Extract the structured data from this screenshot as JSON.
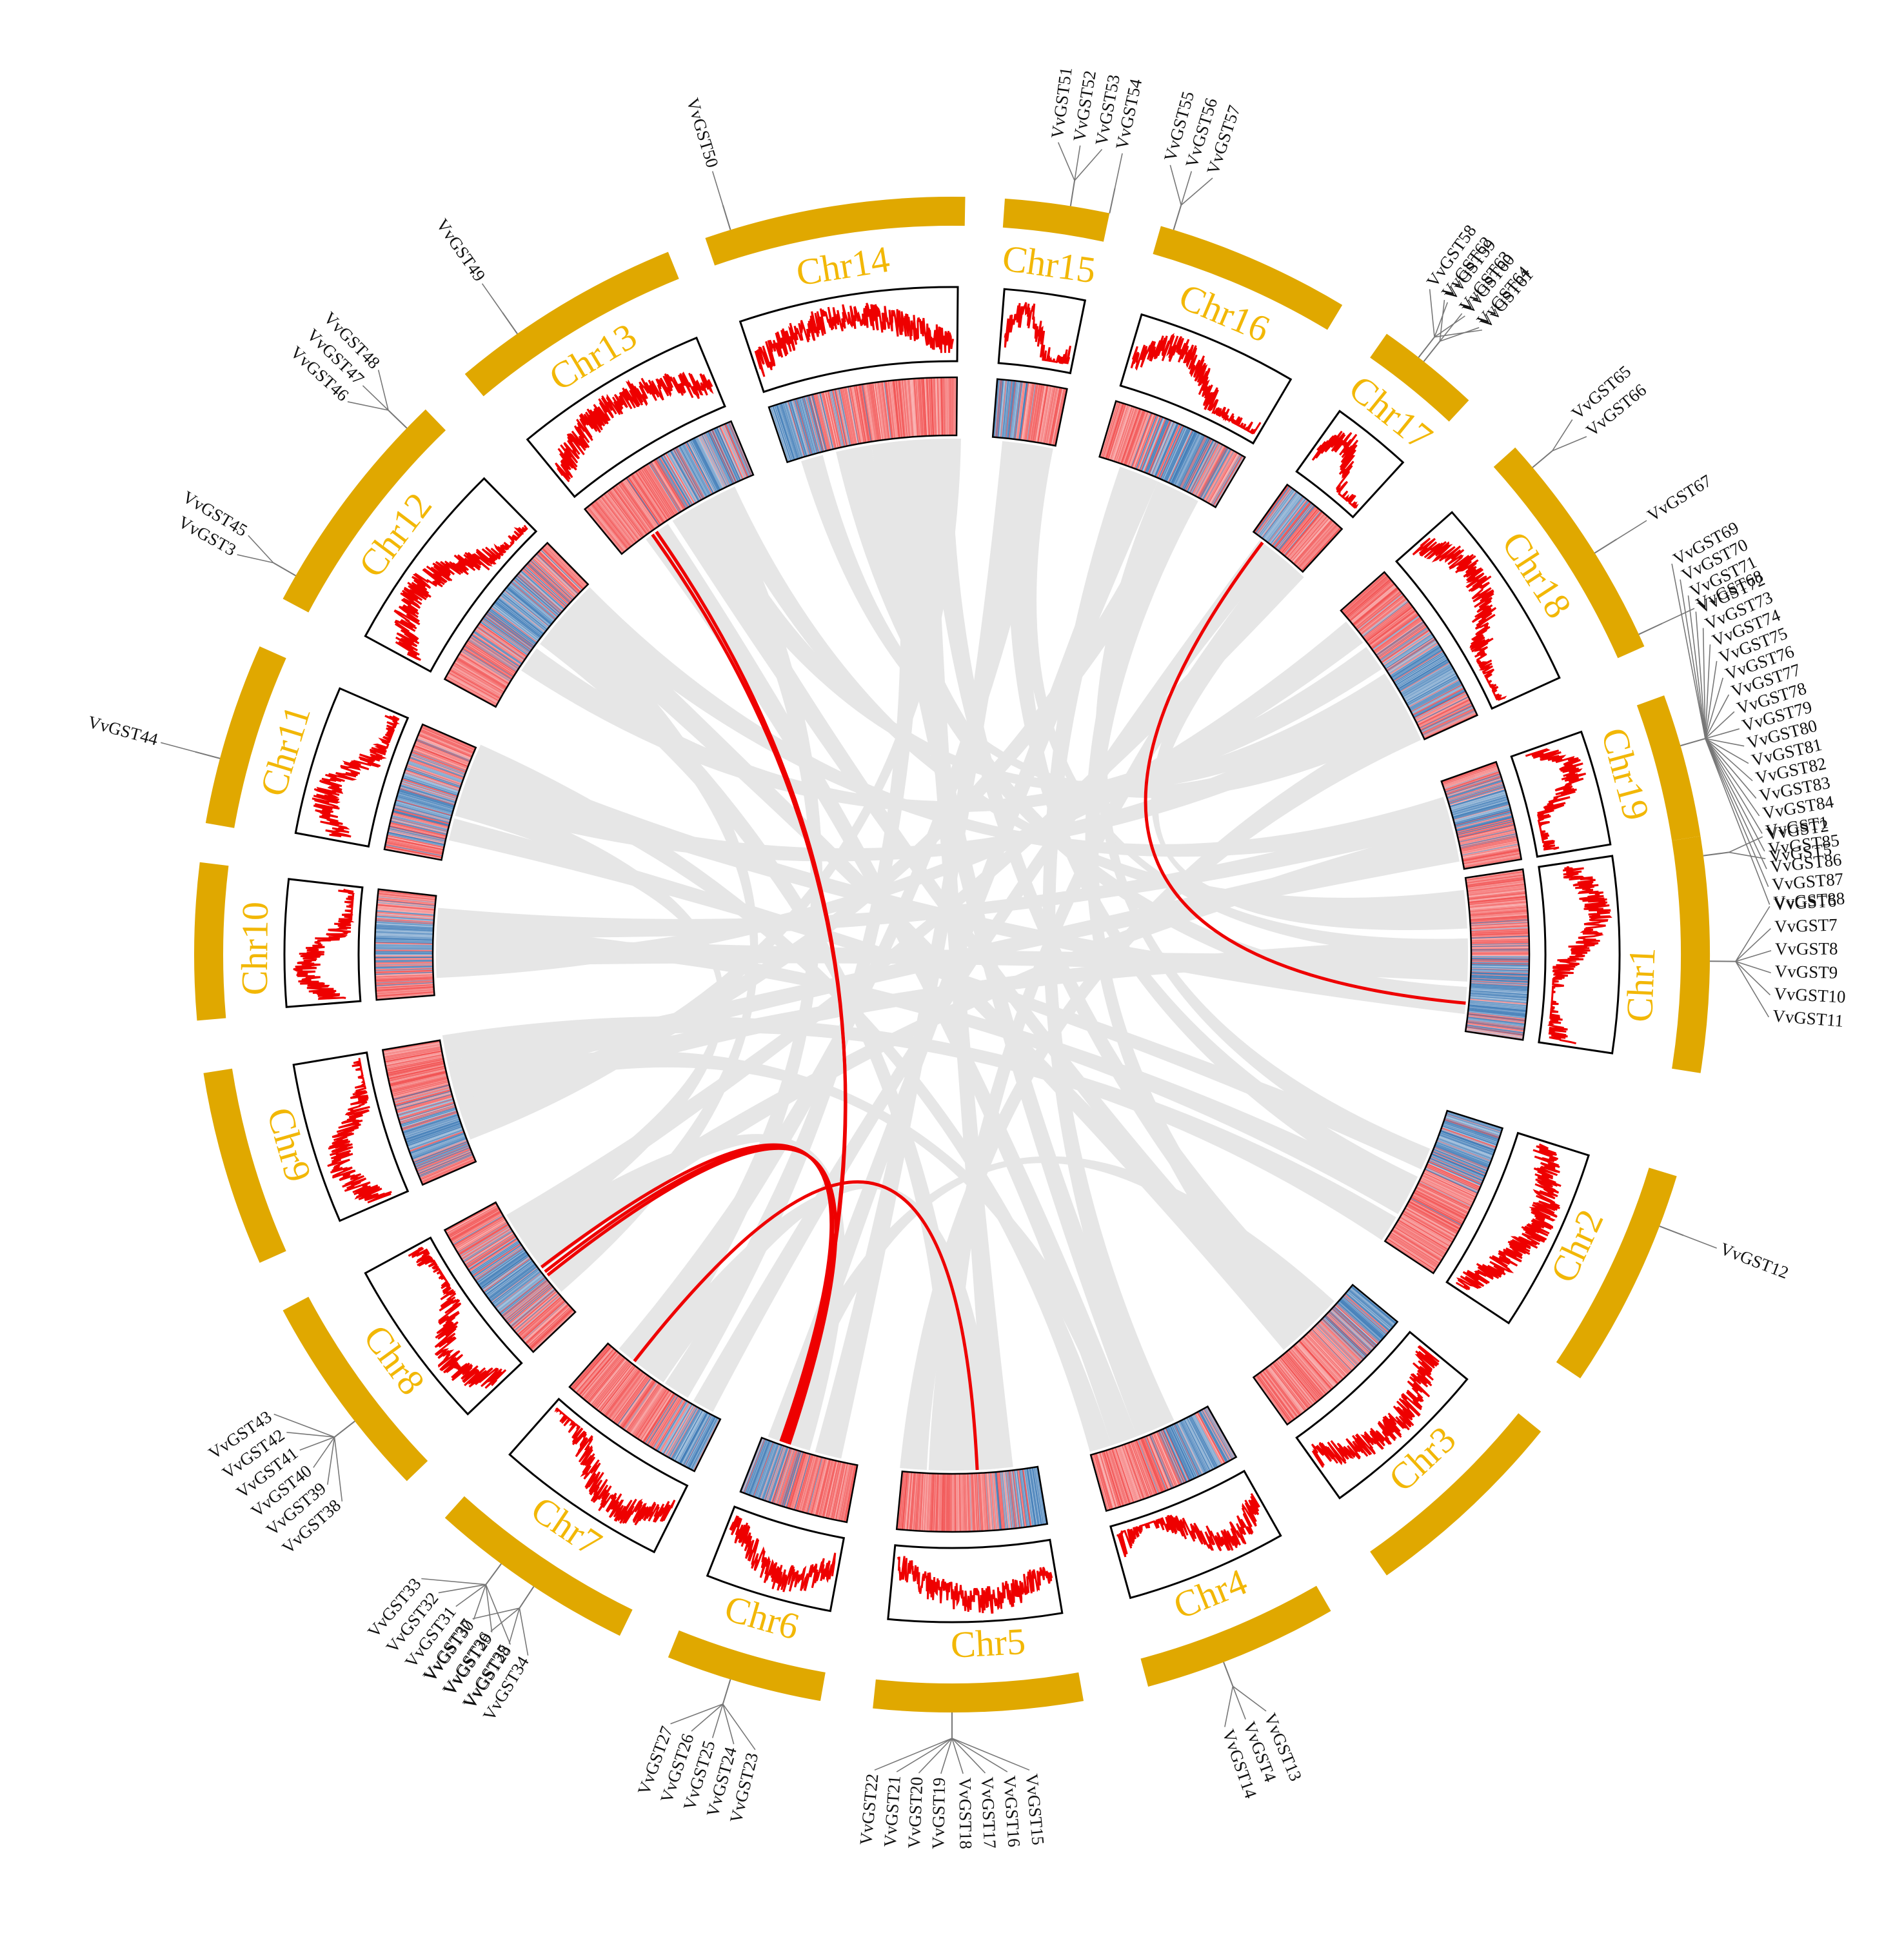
{
  "colors": {
    "chromosome": "#E0A800",
    "chr_label": "#F2B705",
    "density_line": "#EE0000",
    "heat_red": "#F03A3A",
    "heat_blue": "#3A78B5",
    "link_gray": "#E6E6E6",
    "link_red": "#EE0000",
    "leader_line": "#777777"
  },
  "chromosomes": [
    {
      "id": "chr1",
      "label": "Chr1"
    },
    {
      "id": "chr2",
      "label": "Chr2"
    },
    {
      "id": "chr3",
      "label": "Chr3"
    },
    {
      "id": "chr4",
      "label": "Chr4"
    },
    {
      "id": "chr5",
      "label": "Chr5"
    },
    {
      "id": "chr6",
      "label": "Chr6"
    },
    {
      "id": "chr7",
      "label": "Chr7"
    },
    {
      "id": "chr8",
      "label": "Chr8"
    },
    {
      "id": "chr9",
      "label": "Chr9"
    },
    {
      "id": "chr10",
      "label": "Chr10"
    },
    {
      "id": "chr11",
      "label": "Chr11"
    },
    {
      "id": "chr12",
      "label": "Chr12"
    },
    {
      "id": "chr13",
      "label": "Chr13"
    },
    {
      "id": "chr14",
      "label": "Chr14"
    },
    {
      "id": "chr15",
      "label": "Chr15"
    },
    {
      "id": "chr16",
      "label": "Chr16"
    },
    {
      "id": "chr17",
      "label": "Chr17"
    },
    {
      "id": "chr18",
      "label": "Chr18"
    },
    {
      "id": "chr19",
      "label": "Chr19"
    }
  ],
  "gene_groups": [
    {
      "chr": "chr1",
      "genes": [
        "VvGST2",
        "VvGST5"
      ]
    },
    {
      "chr": "chr1",
      "genes": [
        "VvGST6",
        "VvGST7",
        "VvGST8",
        "VvGST9",
        "VvGST10",
        "VvGST11"
      ]
    },
    {
      "chr": "chr2",
      "genes": [
        "VvGST12"
      ]
    },
    {
      "chr": "chr4",
      "genes": [
        "VvGST13",
        "VvGST4",
        "VvGST14"
      ]
    },
    {
      "chr": "chr5",
      "genes": [
        "VvGST15",
        "VvGST16",
        "VvGST17",
        "VvGST18",
        "VvGST19",
        "VvGST20",
        "VvGST21",
        "VvGST22"
      ]
    },
    {
      "chr": "chr6",
      "genes": [
        "VvGST23",
        "VvGST24",
        "VvGST25",
        "VvGST26",
        "VvGST27"
      ]
    },
    {
      "chr": "chr7",
      "genes": [
        "VvGST28",
        "VvGST29",
        "VvGST30",
        "VvGST31",
        "VvGST32",
        "VvGST33"
      ]
    },
    {
      "chr": "chr7",
      "genes": [
        "VvGST34",
        "VvGST35",
        "VvGST36",
        "VvGST37"
      ]
    },
    {
      "chr": "chr8",
      "genes": [
        "VvGST38",
        "VvGST39",
        "VvGST40",
        "VvGST41",
        "VvGST42",
        "VvGST43"
      ]
    },
    {
      "chr": "chr11",
      "genes": [
        "VvGST44"
      ]
    },
    {
      "chr": "chr12",
      "genes": [
        "VvGST3",
        "VvGST45"
      ]
    },
    {
      "chr": "chr12",
      "genes": [
        "VvGST46",
        "VvGST47",
        "VvGST48"
      ]
    },
    {
      "chr": "chr13",
      "genes": [
        "VvGST49"
      ]
    },
    {
      "chr": "chr14",
      "genes": [
        "VvGST50"
      ]
    },
    {
      "chr": "chr15",
      "genes": [
        "VvGST51",
        "VvGST52",
        "VvGST53"
      ]
    },
    {
      "chr": "chr15",
      "genes": [
        "VvGST54"
      ]
    },
    {
      "chr": "chr16",
      "genes": [
        "VvGST55",
        "VvGST56",
        "VvGST57"
      ]
    },
    {
      "chr": "chr17",
      "genes": [
        "VvGST58",
        "VvGST59",
        "VvGST60",
        "VvGST61"
      ]
    },
    {
      "chr": "chr17",
      "genes": [
        "VvGST62",
        "VvGST63",
        "VvGST64"
      ]
    },
    {
      "chr": "chr18",
      "genes": [
        "VvGST65",
        "VvGST66"
      ]
    },
    {
      "chr": "chr18",
      "genes": [
        "VvGST67"
      ]
    },
    {
      "chr": "chr18",
      "genes": [
        "VvGST68"
      ]
    },
    {
      "chr": "chr19",
      "genes": [
        "VvGST69",
        "VvGST70",
        "VvGST71",
        "VvGST72",
        "VvGST73",
        "VvGST74",
        "VvGST75",
        "VvGST76",
        "VvGST77",
        "VvGST78",
        "VvGST79",
        "VvGST80",
        "VvGST81",
        "VvGST82",
        "VvGST83",
        "VvGST84",
        "VvGST1",
        "VvGST85",
        "VvGST86",
        "VvGST87",
        "VvGST88"
      ]
    }
  ],
  "red_links": [
    {
      "from": "chr13",
      "to": "chr6"
    },
    {
      "from": "chr13",
      "to": "chr6"
    },
    {
      "from": "chr8",
      "to": "chr6"
    },
    {
      "from": "chr8",
      "to": "chr6"
    },
    {
      "from": "chr8",
      "to": "chr6"
    },
    {
      "from": "chr7",
      "to": "chr5"
    },
    {
      "from": "chr17",
      "to": "chr1"
    }
  ]
}
